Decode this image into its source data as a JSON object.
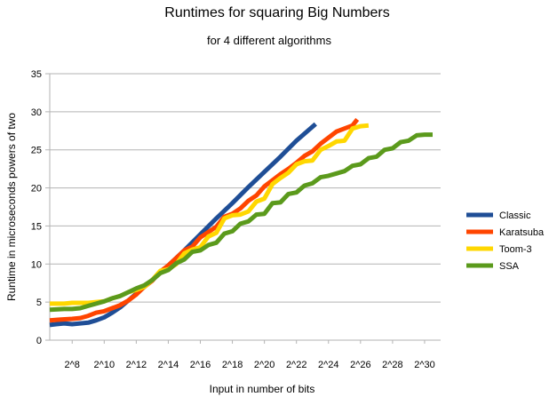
{
  "chart_data": {
    "type": "line",
    "title": "Runtimes for squaring Big Numbers",
    "subtitle": "for 4 different algorithms",
    "xlabel": "Input in number of bits",
    "ylabel": "Runtime in microseconds powers of two",
    "x_tick_labels": [
      "2^8",
      "2^10",
      "2^12",
      "2^14",
      "2^16",
      "2^18",
      "2^20",
      "2^22",
      "2^24",
      "2^26",
      "2^28",
      "2^30"
    ],
    "x_tick_values": [
      8,
      10,
      12,
      14,
      16,
      18,
      20,
      22,
      24,
      26,
      28,
      30
    ],
    "xlim": [
      6.6,
      31
    ],
    "y_tick_labels": [
      "0",
      "5",
      "10",
      "15",
      "20",
      "25",
      "30",
      "35"
    ],
    "ylim": [
      0,
      35
    ],
    "grid": "horizontal",
    "legend_position": "right",
    "series": [
      {
        "name": "Classic",
        "color": "#1f4e96",
        "points": [
          [
            6.6,
            2.0
          ],
          [
            7.0,
            2.1
          ],
          [
            7.5,
            2.2
          ],
          [
            8.0,
            2.1
          ],
          [
            8.5,
            2.2
          ],
          [
            9.0,
            2.3
          ],
          [
            9.5,
            2.6
          ],
          [
            10.0,
            3.0
          ],
          [
            10.5,
            3.6
          ],
          [
            11.0,
            4.3
          ],
          [
            11.5,
            5.2
          ],
          [
            12.0,
            6.1
          ],
          [
            13.0,
            7.9
          ],
          [
            14.0,
            9.8
          ],
          [
            15.0,
            11.8
          ],
          [
            16.0,
            13.9
          ],
          [
            17.0,
            16.0
          ],
          [
            18.0,
            18.0
          ],
          [
            19.0,
            20.1
          ],
          [
            20.0,
            22.1
          ],
          [
            21.0,
            24.1
          ],
          [
            22.0,
            26.2
          ],
          [
            23.2,
            28.4
          ]
        ]
      },
      {
        "name": "Karatsuba",
        "color": "#ff4500",
        "points": [
          [
            6.6,
            2.6
          ],
          [
            7.2,
            2.7
          ],
          [
            8.0,
            2.8
          ],
          [
            8.5,
            2.9
          ],
          [
            9.0,
            3.2
          ],
          [
            9.5,
            3.6
          ],
          [
            10.0,
            3.8
          ],
          [
            10.5,
            4.2
          ],
          [
            11.0,
            4.6
          ],
          [
            11.5,
            5.2
          ],
          [
            12.0,
            6.0
          ],
          [
            12.5,
            7.0
          ],
          [
            13.0,
            7.8
          ],
          [
            13.5,
            9.0
          ],
          [
            14.0,
            9.8
          ],
          [
            14.5,
            10.8
          ],
          [
            15.0,
            11.8
          ],
          [
            15.5,
            12.3
          ],
          [
            16.0,
            13.5
          ],
          [
            16.5,
            14.2
          ],
          [
            17.0,
            14.9
          ],
          [
            17.5,
            16.2
          ],
          [
            18.0,
            16.6
          ],
          [
            18.5,
            17.3
          ],
          [
            19.0,
            18.3
          ],
          [
            19.5,
            19.0
          ],
          [
            20.0,
            20.2
          ],
          [
            20.5,
            21.0
          ],
          [
            21.0,
            21.8
          ],
          [
            21.5,
            22.5
          ],
          [
            22.0,
            23.3
          ],
          [
            22.5,
            24.2
          ],
          [
            23.0,
            24.8
          ],
          [
            23.5,
            25.8
          ],
          [
            24.0,
            26.6
          ],
          [
            24.5,
            27.4
          ],
          [
            25.0,
            27.8
          ],
          [
            25.5,
            28.2
          ],
          [
            25.8,
            29.0
          ]
        ]
      },
      {
        "name": "Toom-3",
        "color": "#ffd700",
        "points": [
          [
            6.6,
            4.8
          ],
          [
            7.5,
            4.8
          ],
          [
            8.0,
            4.9
          ],
          [
            9.0,
            4.9
          ],
          [
            9.5,
            5.0
          ],
          [
            10.0,
            5.1
          ],
          [
            10.5,
            5.5
          ],
          [
            11.0,
            5.8
          ],
          [
            11.5,
            6.3
          ],
          [
            12.0,
            6.6
          ],
          [
            12.5,
            7.0
          ],
          [
            13.0,
            7.9
          ],
          [
            13.5,
            9.1
          ],
          [
            14.0,
            9.3
          ],
          [
            14.5,
            10.0
          ],
          [
            15.0,
            11.4
          ],
          [
            15.5,
            11.9
          ],
          [
            16.0,
            12.2
          ],
          [
            16.5,
            13.6
          ],
          [
            17.0,
            14.1
          ],
          [
            17.5,
            16.0
          ],
          [
            18.0,
            16.4
          ],
          [
            18.5,
            16.5
          ],
          [
            19.0,
            16.9
          ],
          [
            19.5,
            18.2
          ],
          [
            20.0,
            18.6
          ],
          [
            20.5,
            20.5
          ],
          [
            21.0,
            21.3
          ],
          [
            21.5,
            22.0
          ],
          [
            22.0,
            23.1
          ],
          [
            22.5,
            23.5
          ],
          [
            23.0,
            23.6
          ],
          [
            23.5,
            25.0
          ],
          [
            24.0,
            25.5
          ],
          [
            24.5,
            26.1
          ],
          [
            25.0,
            26.2
          ],
          [
            25.5,
            27.8
          ],
          [
            26.0,
            28.1
          ],
          [
            26.5,
            28.2
          ]
        ]
      },
      {
        "name": "SSA",
        "color": "#5b9a1c",
        "points": [
          [
            6.6,
            4.0
          ],
          [
            7.5,
            4.1
          ],
          [
            8.0,
            4.1
          ],
          [
            8.5,
            4.2
          ],
          [
            9.0,
            4.5
          ],
          [
            9.5,
            4.8
          ],
          [
            10.0,
            5.1
          ],
          [
            10.5,
            5.5
          ],
          [
            11.0,
            5.8
          ],
          [
            11.5,
            6.3
          ],
          [
            12.0,
            6.8
          ],
          [
            12.5,
            7.2
          ],
          [
            13.0,
            7.9
          ],
          [
            13.5,
            8.8
          ],
          [
            14.0,
            9.2
          ],
          [
            14.5,
            10.1
          ],
          [
            15.0,
            10.6
          ],
          [
            15.5,
            11.6
          ],
          [
            16.0,
            11.8
          ],
          [
            16.5,
            12.5
          ],
          [
            17.0,
            12.8
          ],
          [
            17.5,
            14.0
          ],
          [
            18.0,
            14.3
          ],
          [
            18.5,
            15.3
          ],
          [
            19.0,
            15.6
          ],
          [
            19.5,
            16.5
          ],
          [
            20.0,
            16.6
          ],
          [
            20.5,
            18.0
          ],
          [
            21.0,
            18.1
          ],
          [
            21.5,
            19.2
          ],
          [
            22.0,
            19.4
          ],
          [
            22.5,
            20.3
          ],
          [
            23.0,
            20.6
          ],
          [
            23.5,
            21.4
          ],
          [
            24.0,
            21.6
          ],
          [
            24.5,
            21.9
          ],
          [
            25.0,
            22.2
          ],
          [
            25.5,
            22.9
          ],
          [
            26.0,
            23.1
          ],
          [
            26.5,
            23.9
          ],
          [
            27.0,
            24.1
          ],
          [
            27.5,
            25.0
          ],
          [
            28.0,
            25.2
          ],
          [
            28.5,
            26.0
          ],
          [
            29.0,
            26.2
          ],
          [
            29.5,
            26.9
          ],
          [
            30.0,
            27.0
          ],
          [
            30.5,
            27.0
          ]
        ]
      }
    ]
  }
}
